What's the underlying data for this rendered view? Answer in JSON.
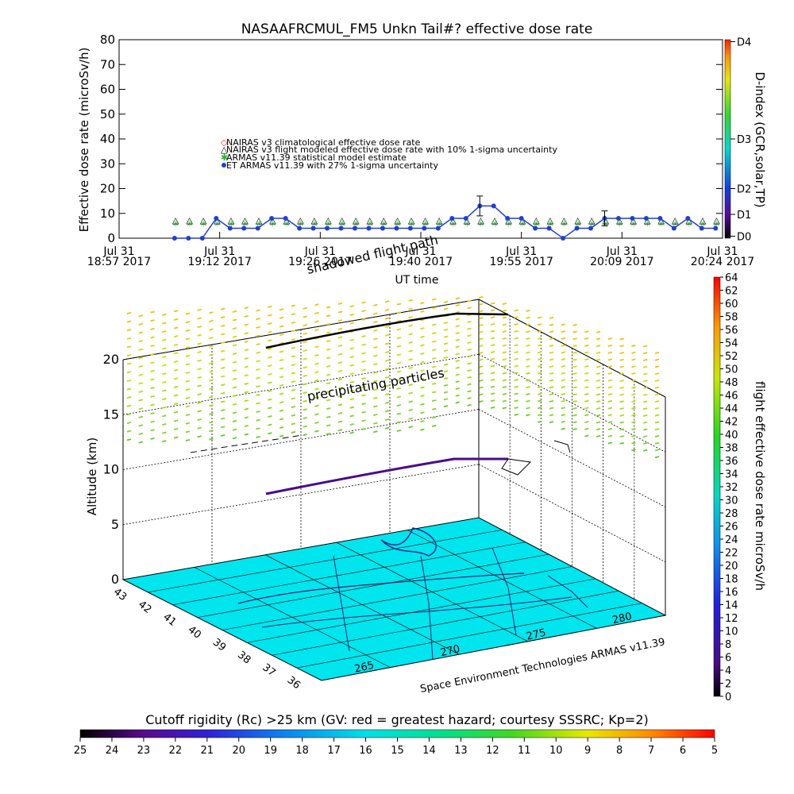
{
  "colors": {
    "armas_series": "#1f3fd6",
    "nairas_climatological": "#e03030",
    "nairas_flight": "#000000",
    "armas_model": "#22b822",
    "ground": "#00e5ee",
    "flight_path": "#000000"
  },
  "chart_data": [
    {
      "type": "line",
      "title": "NASAAFRCMUL_FM5 Unkn Tail#? effective dose rate",
      "ylabel": "Effective dose rate (microSv/h)",
      "xlabel": "UT time",
      "ylim": [
        0,
        80
      ],
      "yticks": [
        0,
        10,
        20,
        30,
        40,
        50,
        60,
        70,
        80
      ],
      "x_ticks": [
        {
          "line1": "Jul 31",
          "line2": "18:57 2017"
        },
        {
          "line1": "Jul 31",
          "line2": "19:12 2017"
        },
        {
          "line1": "Jul 31",
          "line2": "19:26 2017"
        },
        {
          "line1": "Jul 31",
          "line2": "19:40 2017"
        },
        {
          "line1": "Jul 31",
          "line2": "19:55 2017"
        },
        {
          "line1": "Jul 31",
          "line2": "20:09 2017"
        },
        {
          "line1": "Jul 31",
          "line2": "20:24 2017"
        }
      ],
      "x_range": [
        "18:57",
        "20:24"
      ],
      "legend_position": "center-left",
      "legend": [
        "NAIRAS v3 climatological effective dose rate",
        "NAIRAS v3 flight modeled effective dose rate with 10% 1-sigma uncertainty",
        "ARMAS v11.39 statistical model estimate",
        "ET ARMAS v11.39 with 27% 1-sigma uncertainty"
      ],
      "series": [
        {
          "key": "armas",
          "x": [
            "19:05",
            "19:07",
            "19:09",
            "19:11",
            "19:13",
            "19:15",
            "19:17",
            "19:19",
            "19:21",
            "19:23",
            "19:25",
            "19:27",
            "19:29",
            "19:31",
            "19:33",
            "19:35",
            "19:37",
            "19:39",
            "19:41",
            "19:43",
            "19:45",
            "19:47",
            "19:49",
            "19:51",
            "19:53",
            "19:55",
            "19:57",
            "19:59",
            "20:01",
            "20:03",
            "20:05",
            "20:07",
            "20:09",
            "20:11",
            "20:13",
            "20:15",
            "20:17",
            "20:19",
            "20:21",
            "20:23"
          ],
          "values": [
            0,
            0,
            0,
            8,
            4,
            4,
            4,
            8,
            8,
            4,
            4,
            4,
            4,
            4,
            4,
            4,
            4,
            4,
            4,
            4,
            8,
            8,
            13,
            13,
            8,
            8,
            4,
            4,
            0,
            4,
            4,
            8,
            8,
            8,
            8,
            8,
            4,
            8,
            4,
            4
          ]
        }
      ],
      "armas_tail": {
        "x": [
          "20:01",
          "20:03",
          "20:05",
          "20:07",
          "20:09",
          "20:11",
          "20:13",
          "20:15",
          "20:17",
          "20:19",
          "20:21",
          "20:23"
        ],
        "values": [
          4,
          4,
          4,
          4,
          4,
          4,
          4,
          4,
          0,
          0,
          0,
          0
        ]
      },
      "armas_model": {
        "x_start": "19:05",
        "x_end": "20:23",
        "value": 6
      },
      "nairas_flight": {
        "x_start": "19:05",
        "x_end": "20:23",
        "value": 7
      },
      "error_bars": [
        {
          "x": "19:49",
          "value": 13,
          "err": 4
        },
        {
          "x": "20:07",
          "value": 8,
          "err": 3
        }
      ],
      "right_axis": {
        "label": "D-index (GCR,solar,TP)",
        "ticks": [
          "D0",
          "D1",
          "D2",
          "D3",
          "D4"
        ]
      }
    },
    {
      "type": "scatter",
      "title": "",
      "zlabel": "Altitude (km)",
      "zticks": [
        "0",
        "5",
        "10",
        "15",
        "20"
      ],
      "lat_ticks": [
        "43",
        "42",
        "41",
        "40",
        "39",
        "38",
        "37",
        "36"
      ],
      "lon_ticks": [
        "265",
        "270",
        "275",
        "280"
      ],
      "annotations": {
        "shadow": "shadowed flight path",
        "particles": "precipitating particles",
        "credit": "Space Environment Technologies ARMAS v11.39"
      },
      "flight_altitude_km": 11,
      "particle_altitude_range_km": [
        11,
        24
      ]
    }
  ],
  "colorbars": {
    "dose": {
      "label": "flight effective dose rate microSv/h",
      "ticks": [
        "0",
        "2",
        "4",
        "6",
        "8",
        "10",
        "12",
        "14",
        "16",
        "18",
        "20",
        "22",
        "24",
        "26",
        "28",
        "30",
        "32",
        "34",
        "36",
        "38",
        "40",
        "42",
        "44",
        "46",
        "48",
        "50",
        "52",
        "54",
        "56",
        "58",
        "60",
        "62",
        "64"
      ]
    },
    "cutoff": {
      "title": "Cutoff rigidity (Rc) >25 km (GV: red = greatest hazard; courtesy SSSRC; Kp=2)",
      "ticks": [
        "25",
        "24",
        "23",
        "22",
        "21",
        "20",
        "19",
        "18",
        "17",
        "16",
        "15",
        "14",
        "13",
        "12",
        "11",
        "10",
        "9",
        "8",
        "7",
        "6",
        "5"
      ]
    }
  }
}
